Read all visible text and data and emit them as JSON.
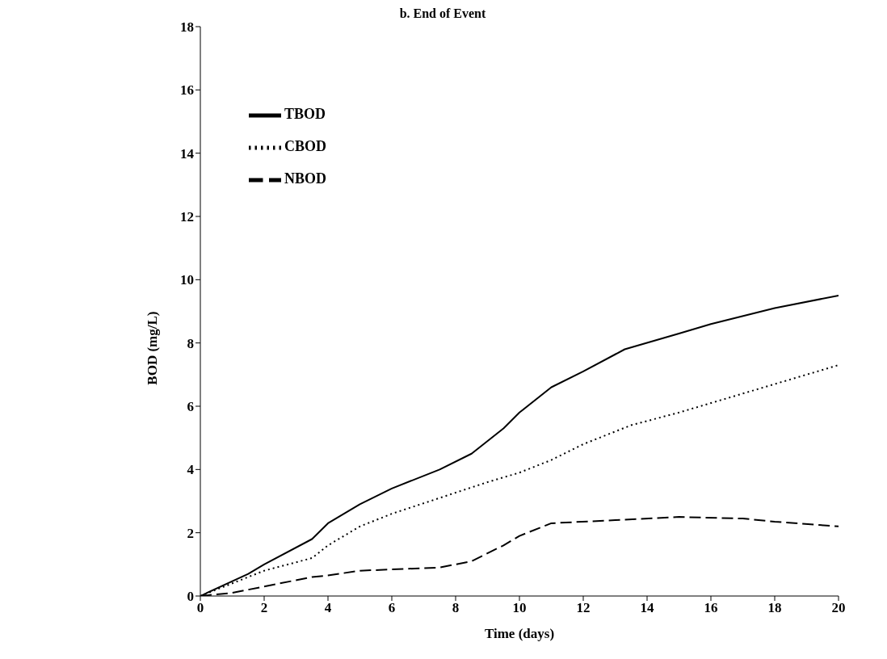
{
  "chart_data": {
    "type": "line",
    "title": "b.  End of Event",
    "xlabel": "Time (days)",
    "ylabel": "BOD (mg/L)",
    "xlim": [
      0,
      20
    ],
    "xticks": [
      0,
      2,
      4,
      6,
      8,
      10,
      12,
      14,
      16,
      18,
      20
    ],
    "ylim": [
      0,
      18
    ],
    "yticks": [
      0,
      2,
      4,
      6,
      8,
      10,
      12,
      14,
      16,
      18
    ],
    "grid": false,
    "legend": "top left",
    "marker": "none",
    "series": [
      {
        "name": "TBOD",
        "color": "#000000",
        "line_style": "solid",
        "x": [
          0,
          1.5,
          2,
          3.5,
          4,
          5,
          6,
          7.5,
          8.5,
          9.5,
          10,
          11,
          12,
          13.3,
          15,
          16,
          18,
          20
        ],
        "values": [
          0,
          0.7,
          1.0,
          1.8,
          2.3,
          2.9,
          3.4,
          4.0,
          4.5,
          5.3,
          5.8,
          6.6,
          7.1,
          7.8,
          8.3,
          8.6,
          9.1,
          9.5
        ]
      },
      {
        "name": "CBOD",
        "color": "#000000",
        "line_style": "dotted",
        "x": [
          0,
          2,
          3.5,
          4,
          5,
          6,
          7.5,
          9,
          10,
          11,
          12,
          13.5,
          15,
          17,
          18,
          20
        ],
        "values": [
          0,
          0.8,
          1.2,
          1.6,
          2.2,
          2.6,
          3.1,
          3.6,
          3.9,
          4.3,
          4.8,
          5.4,
          5.8,
          6.4,
          6.7,
          7.3
        ]
      },
      {
        "name": "NBOD",
        "color": "#000000",
        "line_style": "dashed",
        "x": [
          0,
          1,
          2,
          3.5,
          4,
          5,
          7.5,
          8.5,
          9.5,
          10,
          11,
          13,
          15,
          17,
          18,
          20
        ],
        "values": [
          0,
          0.1,
          0.3,
          0.6,
          0.65,
          0.8,
          0.9,
          1.1,
          1.6,
          1.9,
          2.3,
          2.4,
          2.5,
          2.45,
          2.35,
          2.2
        ]
      }
    ]
  }
}
